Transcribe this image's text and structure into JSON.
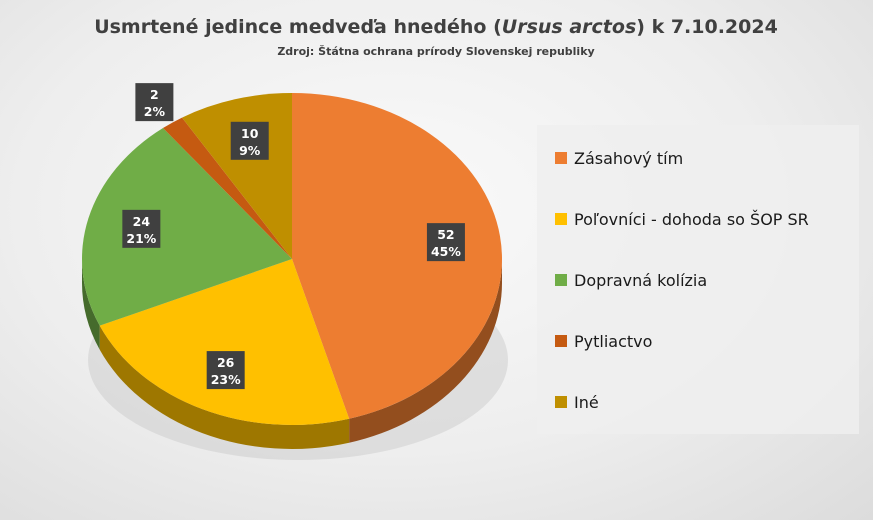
{
  "chart_data": {
    "type": "pie",
    "title_pre": "Usmrtené jedince medveďa hnedého (",
    "title_italic": "Ursus arctos",
    "title_post": ") k 7.10.2024",
    "subtitle": "Zdroj: Štátna ochrana prírody Slovenskej republiky",
    "legend_position": "right",
    "slices": [
      {
        "label": "Zásahový tím",
        "value": 52,
        "percent": "45%",
        "color": "#ED7D31"
      },
      {
        "label": "Poľovníci - dohoda so ŠOP SR",
        "value": 26,
        "percent": "23%",
        "color": "#FFC000"
      },
      {
        "label": "Dopravná kolízia",
        "value": 24,
        "percent": "21%",
        "color": "#70AD47"
      },
      {
        "label": "Pytliactvo",
        "value": 2,
        "percent": "2%",
        "color": "#C55A11"
      },
      {
        "label": "Iné",
        "value": 10,
        "percent": "9%",
        "color": "#BF8F00"
      }
    ]
  }
}
